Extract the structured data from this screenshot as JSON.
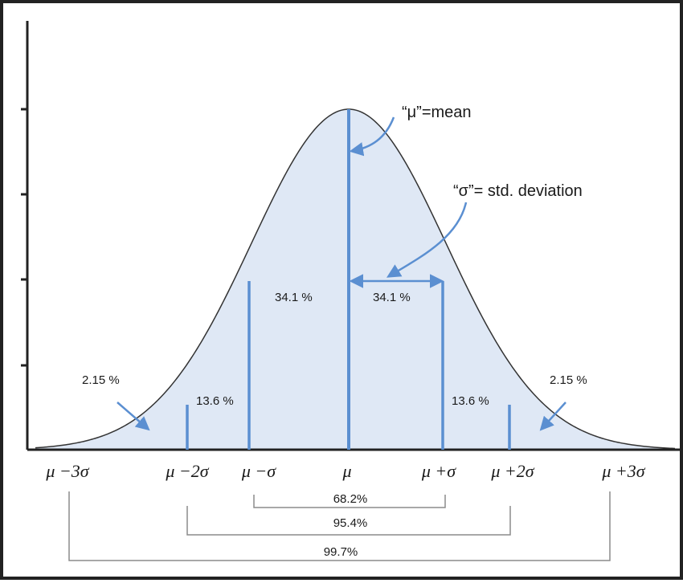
{
  "annotations": {
    "mean": "“μ”=mean",
    "std": "“σ”= std. deviation"
  },
  "regions": {
    "left_core": "34.1 %",
    "right_core": "34.1 %",
    "left_mid": "13.6 %",
    "right_mid": "13.6 %",
    "left_tail": "2.15 %",
    "right_tail": "2.15 %"
  },
  "axis_labels": [
    "μ −3σ",
    "μ −2σ",
    "μ −σ",
    "μ",
    "μ +σ",
    "μ +2σ",
    "μ +3σ"
  ],
  "ranges": {
    "one_sigma": "68.2%",
    "two_sigma": "95.4%",
    "three_sigma": "99.7%"
  },
  "colors": {
    "line": "#5b8fd1",
    "fill": "#dfe8f5",
    "curve": "#333333",
    "bracket": "#8c8c8c"
  }
}
